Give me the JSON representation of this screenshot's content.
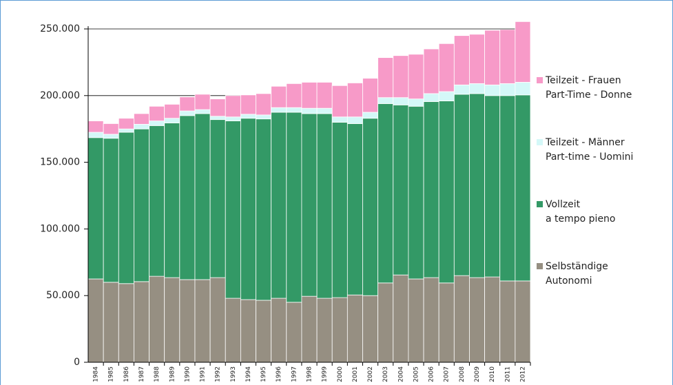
{
  "chart_data": {
    "type": "stacked-bar",
    "categories": [
      "1984",
      "1985",
      "1986",
      "1987",
      "1988",
      "1989",
      "1990",
      "1991",
      "1992",
      "1993",
      "1994",
      "1995",
      "1996",
      "1997",
      "1998",
      "1999",
      "2000",
      "2001",
      "2002",
      "2003",
      "2004",
      "2005",
      "2006",
      "2007",
      "2008",
      "2009",
      "2010",
      "2011",
      "2012"
    ],
    "series": [
      {
        "name": [
          "Selbständige",
          "Autonomi"
        ],
        "color": "#968f82",
        "values": [
          62500,
          60000,
          59000,
          60500,
          64500,
          63500,
          62000,
          62000,
          63500,
          48000,
          47000,
          46500,
          48000,
          45000,
          49500,
          48000,
          48500,
          50500,
          50000,
          59500,
          65500,
          62500,
          63500,
          59500,
          65000,
          63500,
          64000,
          61000,
          61000
        ]
      },
      {
        "name": [
          "Vollzeit",
          "a tempo pieno"
        ],
        "color": "#339966",
        "values": [
          106000,
          108000,
          113500,
          114500,
          113000,
          116000,
          123000,
          124500,
          118500,
          133000,
          136000,
          136000,
          139500,
          142500,
          137000,
          138500,
          131500,
          128500,
          133000,
          134500,
          127500,
          129500,
          132000,
          136500,
          136000,
          138000,
          136000,
          139000,
          139500
        ]
      },
      {
        "name": [
          "Teilzeit - Männer",
          "Part-time - Uomini"
        ],
        "color": "#d4f8f8",
        "values": [
          4000,
          3000,
          2500,
          3500,
          3500,
          3500,
          3500,
          3000,
          2500,
          3000,
          3000,
          3000,
          3500,
          3500,
          4000,
          4000,
          4000,
          5000,
          4500,
          4500,
          5500,
          5500,
          6000,
          7000,
          7000,
          7500,
          8000,
          9000,
          9500
        ]
      },
      {
        "name": [
          "Teilzeit - Frauen",
          "Part-Time - Donne"
        ],
        "color": "#f79ac8",
        "values": [
          8500,
          8000,
          8000,
          8000,
          11000,
          10500,
          10500,
          11500,
          13000,
          16000,
          14500,
          16000,
          16000,
          18000,
          19500,
          19500,
          23500,
          25500,
          25500,
          30000,
          31500,
          33500,
          33500,
          36000,
          37000,
          37000,
          41000,
          40500,
          45500
        ]
      }
    ],
    "ylim": [
      0,
      250000
    ],
    "yticks": [
      0,
      {
        "value": 50000,
        "label": "50.000"
      },
      {
        "value": 100000,
        "label": "100.000"
      },
      {
        "value": 150000,
        "label": "150.000"
      },
      {
        "value": 200000,
        "label": "200.000"
      },
      {
        "value": 250000,
        "label": "250.000"
      }
    ],
    "grid": true
  }
}
